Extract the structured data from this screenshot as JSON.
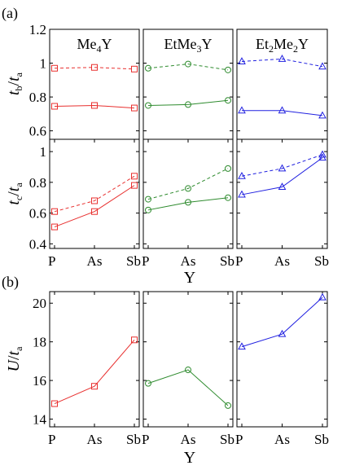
{
  "chart_data": [
    {
      "type": "line",
      "panel": "(a)",
      "facets": [
        "Me4Y",
        "EtMe3Y",
        "Et2Me2Y"
      ],
      "x": [
        "P",
        "As",
        "Sb"
      ],
      "xlabel": "Y",
      "rows": [
        {
          "ylabel": "tb/ta",
          "ylim": [
            0.55,
            1.2
          ],
          "yticks": [
            0.6,
            0.8,
            1,
            1.2
          ],
          "ytick_labels": [
            "0.6",
            "0.8",
            "1",
            "1.2"
          ],
          "series": [
            {
              "facet": "Me4Y",
              "style": "solid",
              "values": [
                0.745,
                0.75,
                0.735
              ]
            },
            {
              "facet": "Me4Y",
              "style": "dashed",
              "values": [
                0.97,
                0.975,
                0.965
              ]
            },
            {
              "facet": "EtMe3Y",
              "style": "solid",
              "values": [
                0.75,
                0.755,
                0.78
              ]
            },
            {
              "facet": "EtMe3Y",
              "style": "dashed",
              "values": [
                0.97,
                0.995,
                0.96
              ]
            },
            {
              "facet": "Et2Me2Y",
              "style": "solid",
              "values": [
                0.72,
                0.72,
                0.69
              ]
            },
            {
              "facet": "Et2Me2Y",
              "style": "dashed",
              "values": [
                1.01,
                1.025,
                0.98
              ]
            }
          ]
        },
        {
          "ylabel": "tc/ta",
          "ylim": [
            0.37,
            1.08
          ],
          "yticks": [
            0.4,
            0.6,
            0.8,
            1
          ],
          "ytick_labels": [
            "0.4",
            "0.6",
            "0.8",
            "1"
          ],
          "series": [
            {
              "facet": "Me4Y",
              "style": "solid",
              "values": [
                0.51,
                0.61,
                0.78
              ]
            },
            {
              "facet": "Me4Y",
              "style": "dashed",
              "values": [
                0.61,
                0.68,
                0.84
              ]
            },
            {
              "facet": "EtMe3Y",
              "style": "solid",
              "values": [
                0.62,
                0.67,
                0.7
              ]
            },
            {
              "facet": "EtMe3Y",
              "style": "dashed",
              "values": [
                0.69,
                0.76,
                0.89
              ]
            },
            {
              "facet": "Et2Me2Y",
              "style": "solid",
              "values": [
                0.72,
                0.77,
                0.96
              ]
            },
            {
              "facet": "Et2Me2Y",
              "style": "dashed",
              "values": [
                0.84,
                0.89,
                0.98
              ]
            }
          ]
        }
      ]
    },
    {
      "type": "line",
      "panel": "(b)",
      "x": [
        "P",
        "As",
        "Sb"
      ],
      "xlabel": "Y",
      "ylabel": "U/ta",
      "ylim": [
        13.6,
        20.6
      ],
      "yticks": [
        14,
        16,
        18,
        20
      ],
      "ytick_labels": [
        "14",
        "16",
        "18",
        "20"
      ],
      "series": [
        {
          "facet": "Me4Y",
          "values": [
            14.8,
            15.7,
            18.1
          ]
        },
        {
          "facet": "EtMe3Y",
          "values": [
            15.85,
            16.55,
            14.7
          ]
        },
        {
          "facet": "Et2Me2Y",
          "values": [
            17.75,
            18.4,
            20.3
          ]
        }
      ]
    }
  ],
  "facet_labels": [
    {
      "base": "Me",
      "sub": "4",
      "tail": "Y"
    },
    {
      "base": "EtMe",
      "sub": "3",
      "tail": "Y"
    },
    {
      "base": "Et",
      "sub": "2",
      "tail2": "Me",
      "sub2": "2",
      "tail": "Y"
    }
  ],
  "ylabels": {
    "top": {
      "main": "t",
      "sub": "b",
      "slash": "/",
      "main2": "t",
      "sub2": "a"
    },
    "mid": {
      "main": "t",
      "sub": "c",
      "slash": "/",
      "main2": "t",
      "sub2": "a"
    },
    "bottom": {
      "main": "U",
      "slash": "/",
      "main2": "t",
      "sub2": "a"
    }
  },
  "colors": {
    "Me4Y": "#e8302f",
    "EtMe3Y": "#2e8b2e",
    "Et2Me2Y": "#2020e0"
  },
  "markers": {
    "Me4Y": "square",
    "EtMe3Y": "circle",
    "Et2Me2Y": "triangle"
  }
}
